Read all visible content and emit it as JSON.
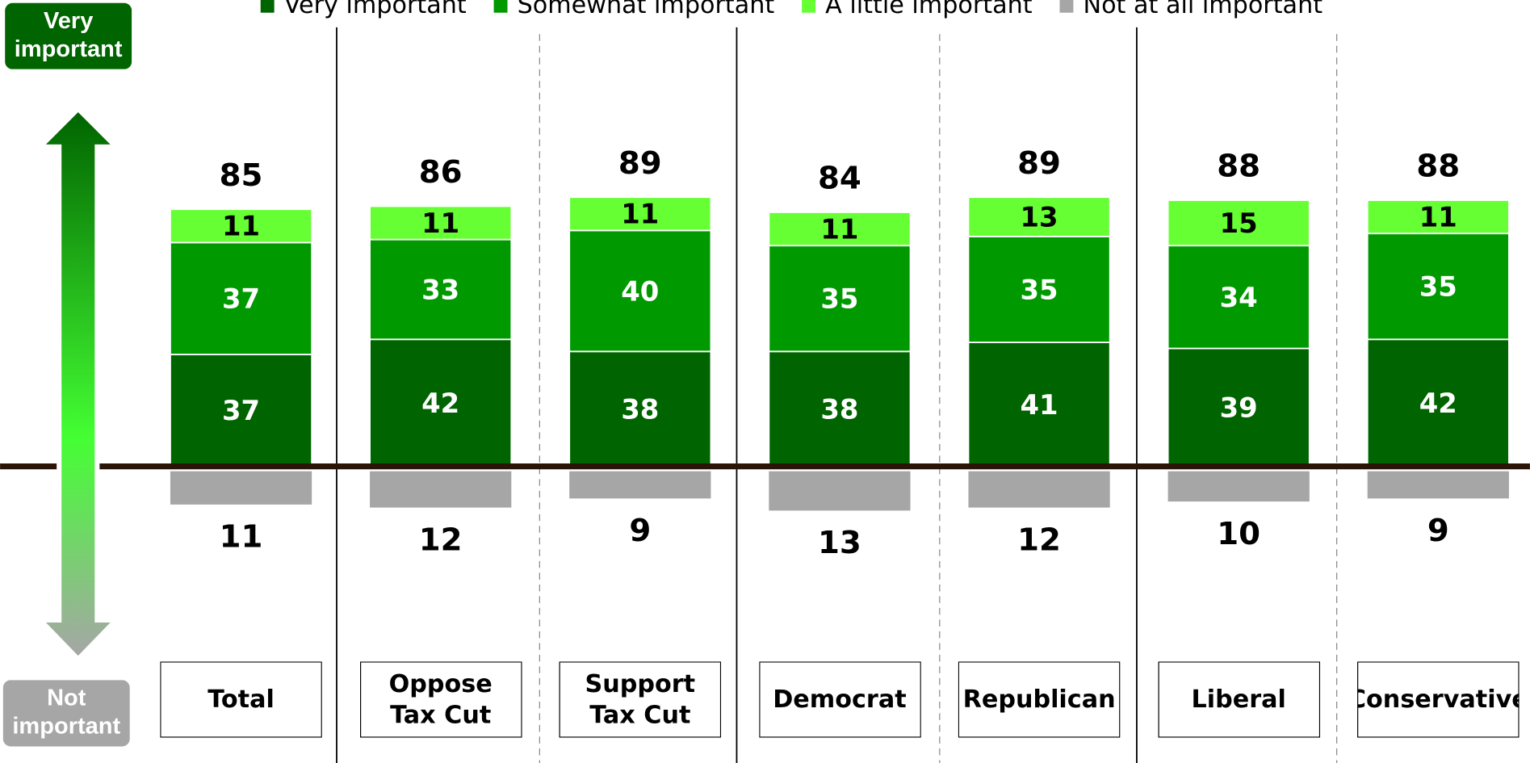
{
  "chart_data": {
    "type": "diverging-bar",
    "categories": [
      "Total",
      "Oppose Tax Cut",
      "Support Tax Cut",
      "Democrat",
      "Republican",
      "Liberal",
      "Conservative"
    ],
    "series": [
      {
        "name": "Very important",
        "color": "#006400",
        "values": [
          37,
          42,
          38,
          38,
          41,
          39,
          42
        ]
      },
      {
        "name": "Somewhat important",
        "color": "#009900",
        "values": [
          37,
          33,
          40,
          35,
          35,
          34,
          35
        ]
      },
      {
        "name": "A little important",
        "color": "#66ff33",
        "values": [
          11,
          11,
          11,
          11,
          13,
          15,
          11
        ]
      },
      {
        "name": "Not at all important",
        "color": "#a6a6a6",
        "values": [
          11,
          12,
          9,
          13,
          12,
          10,
          9
        ],
        "direction": "down"
      }
    ],
    "totals": [
      85,
      86,
      89,
      84,
      89,
      88,
      88
    ],
    "top_label": "Very important",
    "bottom_label": "Not important"
  }
}
